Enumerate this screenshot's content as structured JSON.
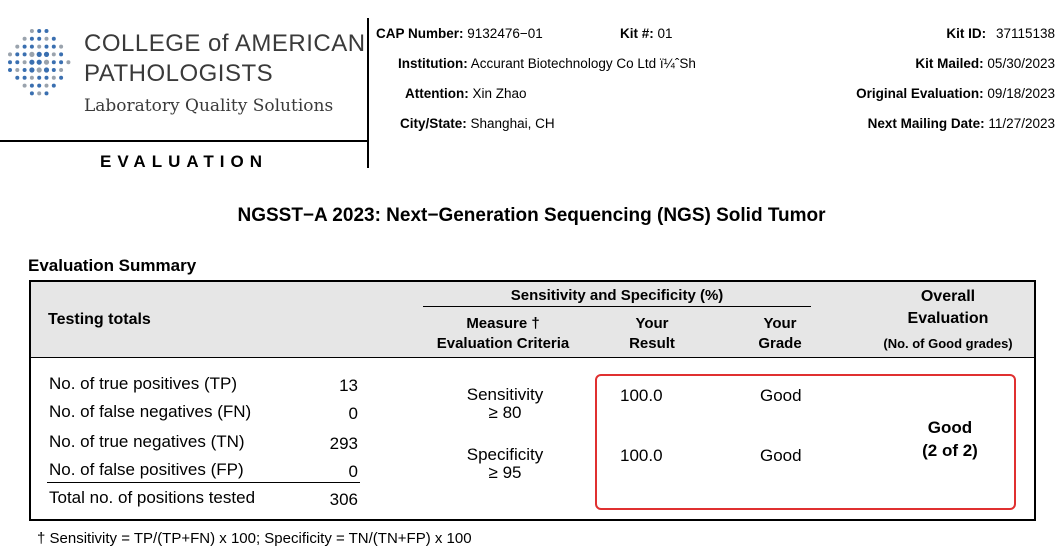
{
  "header": {
    "org_name_line1": "COLLEGE of AMERICAN",
    "org_name_line2": "PATHOLOGISTS",
    "org_tagline": "Laboratory Quality Solutions",
    "document_type": "EVALUATION",
    "cap_number_label": "CAP Number:",
    "cap_number": "9132476−01",
    "kit_no_label": "Kit #:",
    "kit_no": "01",
    "kit_id_label": "Kit ID:",
    "kit_id": "37115138",
    "institution_label": "Institution:",
    "institution": "Accurant Biotechnology Co Ltd ï¼ˆSh",
    "kit_mailed_label": "Kit Mailed:",
    "kit_mailed": "05/30/2023",
    "attention_label": "Attention:",
    "attention": "Xin Zhao",
    "original_eval_label": "Original Evaluation:",
    "original_eval": "09/18/2023",
    "city_state_label": "City/State:",
    "city_state": "Shanghai, CH",
    "next_mailing_label": "Next Mailing Date:",
    "next_mailing": "11/27/2023"
  },
  "title": "NGSST−A 2023: Next−Generation Sequencing (NGS) Solid Tumor",
  "section_title": "Evaluation Summary",
  "table": {
    "testing_totals_header": "Testing totals",
    "sens_spec_header": "Sensitivity and Specificity (%)",
    "measure_header_line1": "Measure †",
    "measure_header_line2": "Evaluation Criteria",
    "your_result_line1": "Your",
    "your_result_line2": "Result",
    "your_grade_line1": "Your",
    "your_grade_line2": "Grade",
    "overall_line1": "Overall",
    "overall_line2": "Evaluation",
    "overall_line3": "(No. of Good grades)",
    "totals": [
      {
        "label": "No. of true positives (TP)",
        "value": "13"
      },
      {
        "label": "No. of false negatives (FN)",
        "value": "0"
      },
      {
        "label": "No. of true negatives (TN)",
        "value": "293"
      },
      {
        "label": "No. of false positives (FP)",
        "value": "0"
      },
      {
        "label": "Total no. of positions tested",
        "value": "306"
      }
    ],
    "measures": [
      {
        "name": "Sensitivity",
        "criteria": "≥ 80",
        "result": "100.0",
        "grade": "Good"
      },
      {
        "name": "Specificity",
        "criteria": "≥ 95",
        "result": "100.0",
        "grade": "Good"
      }
    ],
    "overall_grade": "Good",
    "overall_count": "(2 of 2)"
  },
  "footnote": "† Sensitivity = TP/(TP+FN) x 100; Specificity = TN/(TN+FP) x 100",
  "colors": {
    "highlight_border": "#e03030",
    "header_bg": "#e6e6e6",
    "logo_blue": "#3a6fb0",
    "logo_gray": "#9aa3ad"
  }
}
